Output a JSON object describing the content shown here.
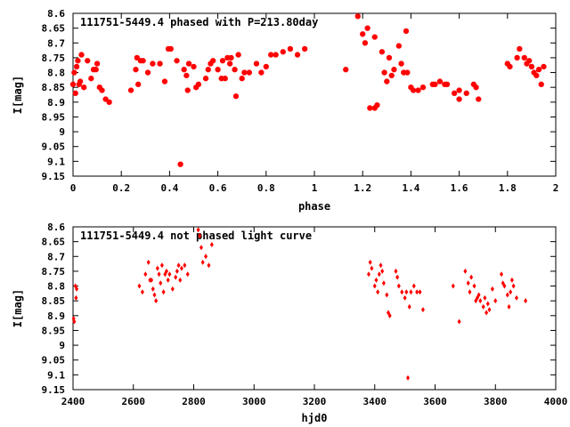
{
  "chart_data": [
    {
      "type": "scatter",
      "title": "111751-5449.4 phased with P=213.80day",
      "xlabel": "phase",
      "ylabel": "I[mag]",
      "xlim": [
        0,
        2
      ],
      "ylim": [
        8.6,
        9.15
      ],
      "y_inverted": true,
      "grid": false,
      "marker": "asterisk",
      "color": "#ff0000",
      "xticks": [
        "0",
        "0.2",
        "0.4",
        "0.6",
        "0.8",
        "1",
        "1.2",
        "1.4",
        "1.6",
        "1.8",
        "2"
      ],
      "yticks": [
        "8.6",
        "8.65",
        "8.7",
        "8.75",
        "8.8",
        "8.85",
        "8.9",
        "8.95",
        "9",
        "9.05",
        "9.1",
        "9.15"
      ],
      "points": [
        [
          0.0,
          8.84
        ],
        [
          0.005,
          8.8
        ],
        [
          0.01,
          8.87
        ],
        [
          0.015,
          8.78
        ],
        [
          0.02,
          8.76
        ],
        [
          0.025,
          8.84
        ],
        [
          0.03,
          8.83
        ],
        [
          0.035,
          8.74
        ],
        [
          0.045,
          8.85
        ],
        [
          0.06,
          8.76
        ],
        [
          0.075,
          8.82
        ],
        [
          0.085,
          8.79
        ],
        [
          0.095,
          8.79
        ],
        [
          0.1,
          8.77
        ],
        [
          0.11,
          8.85
        ],
        [
          0.12,
          8.86
        ],
        [
          0.135,
          8.89
        ],
        [
          0.15,
          8.9
        ],
        [
          0.24,
          8.86
        ],
        [
          0.26,
          8.79
        ],
        [
          0.265,
          8.75
        ],
        [
          0.27,
          8.84
        ],
        [
          0.28,
          8.76
        ],
        [
          0.29,
          8.76
        ],
        [
          0.31,
          8.8
        ],
        [
          0.33,
          8.77
        ],
        [
          0.36,
          8.77
        ],
        [
          0.38,
          8.83
        ],
        [
          0.395,
          8.72
        ],
        [
          0.405,
          8.72
        ],
        [
          0.43,
          8.76
        ],
        [
          0.445,
          9.11
        ],
        [
          0.46,
          8.79
        ],
        [
          0.47,
          8.81
        ],
        [
          0.475,
          8.86
        ],
        [
          0.48,
          8.77
        ],
        [
          0.5,
          8.78
        ],
        [
          0.51,
          8.85
        ],
        [
          0.52,
          8.84
        ],
        [
          0.55,
          8.82
        ],
        [
          0.56,
          8.79
        ],
        [
          0.57,
          8.77
        ],
        [
          0.58,
          8.76
        ],
        [
          0.6,
          8.79
        ],
        [
          0.615,
          8.82
        ],
        [
          0.62,
          8.76
        ],
        [
          0.63,
          8.82
        ],
        [
          0.64,
          8.75
        ],
        [
          0.65,
          8.77
        ],
        [
          0.655,
          8.75
        ],
        [
          0.67,
          8.79
        ],
        [
          0.675,
          8.88
        ],
        [
          0.685,
          8.74
        ],
        [
          0.7,
          8.82
        ],
        [
          0.71,
          8.8
        ],
        [
          0.73,
          8.8
        ],
        [
          0.76,
          8.77
        ],
        [
          0.78,
          8.8
        ],
        [
          0.8,
          8.78
        ],
        [
          0.82,
          8.74
        ],
        [
          0.84,
          8.74
        ],
        [
          0.87,
          8.73
        ],
        [
          0.9,
          8.72
        ],
        [
          0.93,
          8.74
        ],
        [
          0.96,
          8.72
        ],
        [
          1.13,
          8.79
        ],
        [
          1.18,
          8.61
        ],
        [
          1.2,
          8.67
        ],
        [
          1.21,
          8.7
        ],
        [
          1.22,
          8.65
        ],
        [
          1.23,
          8.92
        ],
        [
          1.25,
          8.68
        ],
        [
          1.25,
          8.92
        ],
        [
          1.26,
          8.91
        ],
        [
          1.28,
          8.73
        ],
        [
          1.29,
          8.8
        ],
        [
          1.3,
          8.83
        ],
        [
          1.31,
          8.75
        ],
        [
          1.32,
          8.81
        ],
        [
          1.33,
          8.79
        ],
        [
          1.35,
          8.71
        ],
        [
          1.36,
          8.77
        ],
        [
          1.37,
          8.8
        ],
        [
          1.38,
          8.66
        ],
        [
          1.385,
          8.8
        ],
        [
          1.4,
          8.85
        ],
        [
          1.41,
          8.86
        ],
        [
          1.43,
          8.86
        ],
        [
          1.45,
          8.85
        ],
        [
          1.49,
          8.84
        ],
        [
          1.5,
          8.84
        ],
        [
          1.52,
          8.83
        ],
        [
          1.54,
          8.84
        ],
        [
          1.55,
          8.84
        ],
        [
          1.58,
          8.87
        ],
        [
          1.6,
          8.89
        ],
        [
          1.6,
          8.86
        ],
        [
          1.63,
          8.87
        ],
        [
          1.66,
          8.84
        ],
        [
          1.67,
          8.85
        ],
        [
          1.68,
          8.89
        ],
        [
          1.8,
          8.77
        ],
        [
          1.81,
          8.78
        ],
        [
          1.84,
          8.75
        ],
        [
          1.85,
          8.72
        ],
        [
          1.87,
          8.75
        ],
        [
          1.88,
          8.77
        ],
        [
          1.89,
          8.76
        ],
        [
          1.9,
          8.78
        ],
        [
          1.91,
          8.8
        ],
        [
          1.92,
          8.81
        ],
        [
          1.93,
          8.79
        ],
        [
          1.94,
          8.84
        ],
        [
          1.95,
          8.78
        ]
      ]
    },
    {
      "type": "scatter",
      "title": "111751-5449.4 not phased light curve",
      "xlabel": "hjd0",
      "ylabel": "I[mag]",
      "xlim": [
        2400,
        4000
      ],
      "ylim": [
        8.6,
        9.15
      ],
      "y_inverted": true,
      "grid": false,
      "marker": "diamond",
      "color": "#ff0000",
      "xticks": [
        "2400",
        "2600",
        "2800",
        "3000",
        "3200",
        "3400",
        "3600",
        "3800",
        "4000"
      ],
      "yticks": [
        "8.6",
        "8.65",
        "8.7",
        "8.75",
        "8.8",
        "8.85",
        "8.9",
        "8.95",
        "9",
        "9.05",
        "9.1",
        "9.15"
      ],
      "points": [
        [
          2402,
          8.91
        ],
        [
          2404,
          8.92
        ],
        [
          2408,
          8.8
        ],
        [
          2410,
          8.84
        ],
        [
          2412,
          8.81
        ],
        [
          2620,
          8.8
        ],
        [
          2630,
          8.82
        ],
        [
          2640,
          8.76
        ],
        [
          2650,
          8.72
        ],
        [
          2655,
          8.78
        ],
        [
          2660,
          8.78
        ],
        [
          2665,
          8.81
        ],
        [
          2670,
          8.83
        ],
        [
          2675,
          8.85
        ],
        [
          2680,
          8.74
        ],
        [
          2685,
          8.76
        ],
        [
          2690,
          8.79
        ],
        [
          2695,
          8.73
        ],
        [
          2700,
          8.82
        ],
        [
          2705,
          8.76
        ],
        [
          2710,
          8.75
        ],
        [
          2715,
          8.78
        ],
        [
          2720,
          8.76
        ],
        [
          2730,
          8.81
        ],
        [
          2740,
          8.77
        ],
        [
          2745,
          8.75
        ],
        [
          2750,
          8.73
        ],
        [
          2755,
          8.78
        ],
        [
          2760,
          8.74
        ],
        [
          2770,
          8.73
        ],
        [
          2780,
          8.76
        ],
        [
          2815,
          8.61
        ],
        [
          2820,
          8.63
        ],
        [
          2825,
          8.67
        ],
        [
          2830,
          8.72
        ],
        [
          2840,
          8.7
        ],
        [
          2850,
          8.73
        ],
        [
          2860,
          8.66
        ],
        [
          3380,
          8.76
        ],
        [
          3385,
          8.72
        ],
        [
          3390,
          8.74
        ],
        [
          3400,
          8.8
        ],
        [
          3405,
          8.78
        ],
        [
          3410,
          8.82
        ],
        [
          3415,
          8.76
        ],
        [
          3420,
          8.73
        ],
        [
          3425,
          8.75
        ],
        [
          3430,
          8.79
        ],
        [
          3440,
          8.83
        ],
        [
          3445,
          8.89
        ],
        [
          3450,
          8.9
        ],
        [
          3470,
          8.75
        ],
        [
          3475,
          8.77
        ],
        [
          3480,
          8.8
        ],
        [
          3490,
          8.82
        ],
        [
          3500,
          8.84
        ],
        [
          3505,
          8.82
        ],
        [
          3510,
          9.11
        ],
        [
          3515,
          8.87
        ],
        [
          3520,
          8.82
        ],
        [
          3530,
          8.8
        ],
        [
          3540,
          8.82
        ],
        [
          3550,
          8.82
        ],
        [
          3560,
          8.88
        ],
        [
          3660,
          8.8
        ],
        [
          3680,
          8.92
        ],
        [
          3700,
          8.75
        ],
        [
          3710,
          8.79
        ],
        [
          3715,
          8.82
        ],
        [
          3720,
          8.77
        ],
        [
          3730,
          8.8
        ],
        [
          3735,
          8.85
        ],
        [
          3740,
          8.84
        ],
        [
          3745,
          8.83
        ],
        [
          3750,
          8.85
        ],
        [
          3760,
          8.87
        ],
        [
          3765,
          8.84
        ],
        [
          3770,
          8.89
        ],
        [
          3775,
          8.86
        ],
        [
          3780,
          8.88
        ],
        [
          3790,
          8.81
        ],
        [
          3800,
          8.85
        ],
        [
          3820,
          8.76
        ],
        [
          3825,
          8.79
        ],
        [
          3830,
          8.8
        ],
        [
          3840,
          8.83
        ],
        [
          3845,
          8.87
        ],
        [
          3850,
          8.82
        ],
        [
          3855,
          8.78
        ],
        [
          3860,
          8.8
        ],
        [
          3870,
          8.84
        ],
        [
          3900,
          8.85
        ]
      ]
    }
  ]
}
